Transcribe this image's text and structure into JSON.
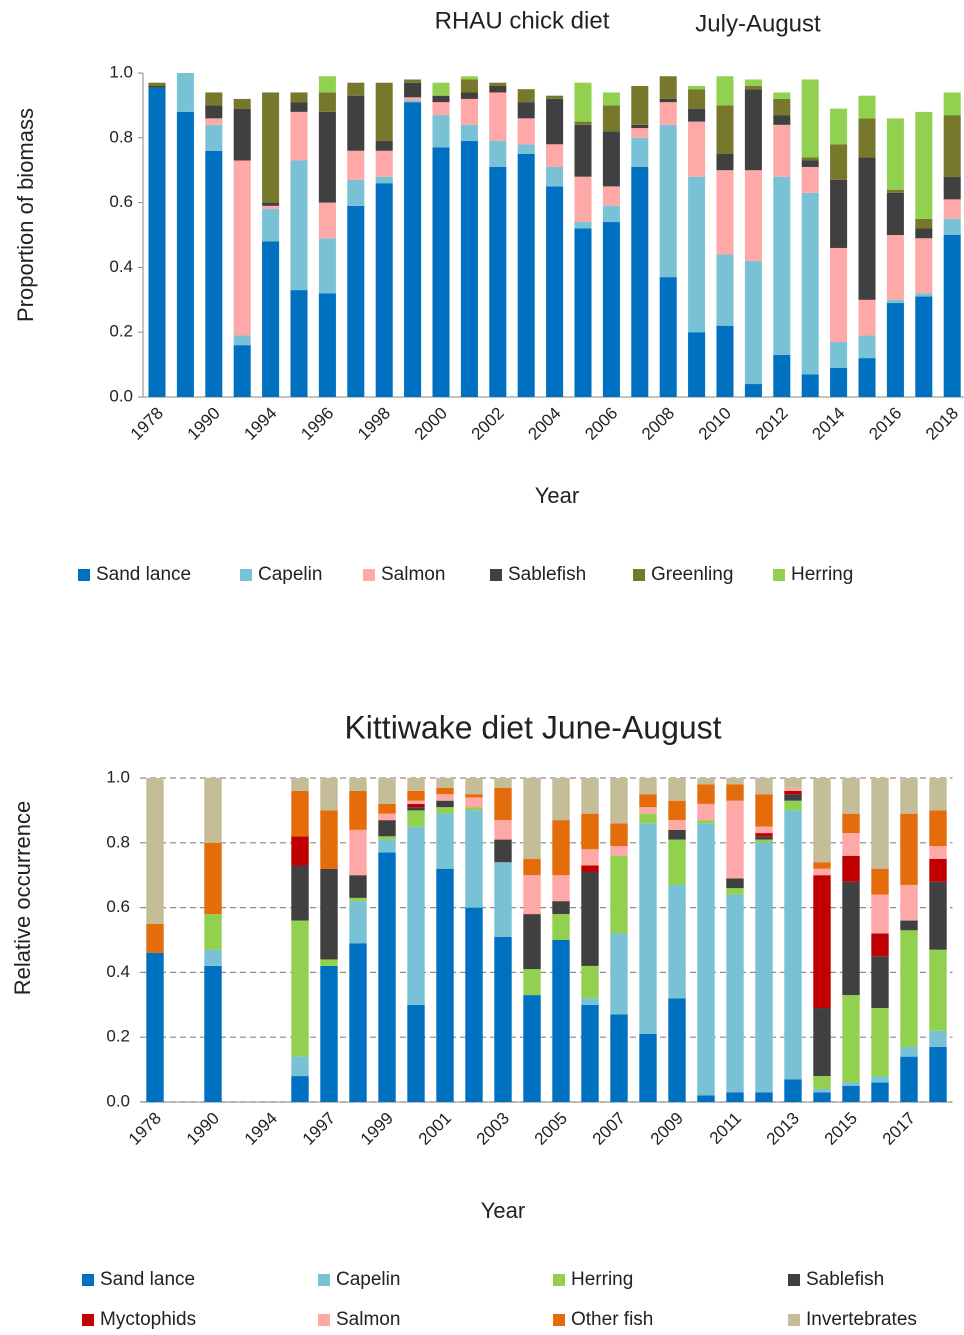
{
  "chart_data": [
    {
      "type": "bar",
      "stacked": true,
      "title": "RHAU chick diet",
      "subtitle": "July-August",
      "xlabel": "Year",
      "ylabel": "Proportion of biomass",
      "grid": false,
      "categories": [
        "1978",
        null,
        "1990",
        null,
        "1994",
        null,
        "1996",
        null,
        "1998",
        null,
        "2000",
        null,
        "2002",
        null,
        "2004",
        null,
        "2006",
        null,
        "2008",
        null,
        "2010",
        null,
        "2012",
        null,
        "2014",
        null,
        "2016",
        null,
        "2018"
      ],
      "ylim": [
        0,
        1
      ],
      "yticks": [
        {
          "value": 0,
          "label": "0.0"
        },
        {
          "value": 0.2,
          "label": "0.2"
        },
        {
          "value": 0.4,
          "label": "0.4"
        },
        {
          "value": 0.6,
          "label": "0.6"
        },
        {
          "value": 0.8,
          "label": "0.8"
        },
        {
          "value": 1,
          "label": "1.0"
        }
      ],
      "series": [
        {
          "name": "Sand lance",
          "color": "#0070c0",
          "values": [
            0.955,
            0.88,
            0.76,
            0.16,
            0.48,
            0.33,
            0.32,
            0.59,
            0.66,
            0.91,
            0.77,
            0.79,
            0.71,
            0.75,
            0.65,
            0.52,
            0.54,
            0.71,
            0.37,
            0.2,
            0.22,
            0.04,
            0.13,
            0.07,
            0.09,
            0.12,
            0.29,
            0.31,
            0.5
          ]
        },
        {
          "name": "Capelin",
          "color": "#79c2d6",
          "values": [
            0,
            0.12,
            0.08,
            0.03,
            0.1,
            0.4,
            0.17,
            0.08,
            0.02,
            0.005,
            0.1,
            0.05,
            0.08,
            0.03,
            0.06,
            0.02,
            0.05,
            0.09,
            0.47,
            0.48,
            0.22,
            0.38,
            0.55,
            0.56,
            0.08,
            0.07,
            0.01,
            0.01,
            0.05
          ]
        },
        {
          "name": "Salmon",
          "color": "#ffa8a8",
          "values": [
            0,
            0,
            0.02,
            0.54,
            0.01,
            0.15,
            0.11,
            0.09,
            0.08,
            0.01,
            0.04,
            0.08,
            0.15,
            0.08,
            0.07,
            0.14,
            0.06,
            0.03,
            0.07,
            0.17,
            0.26,
            0.28,
            0.16,
            0.08,
            0.29,
            0.11,
            0.2,
            0.17,
            0.06
          ]
        },
        {
          "name": "Sablefish",
          "color": "#404040",
          "values": [
            0.005,
            0,
            0.04,
            0.16,
            0.01,
            0.03,
            0.28,
            0.17,
            0.03,
            0.045,
            0.02,
            0.02,
            0.02,
            0.05,
            0.14,
            0.16,
            0.17,
            0.01,
            0.01,
            0.04,
            0.05,
            0.25,
            0.03,
            0.02,
            0.21,
            0.44,
            0.13,
            0.03,
            0.07
          ]
        },
        {
          "name": "Greenling",
          "color": "#77782c",
          "values": [
            0.01,
            0,
            0.04,
            0.03,
            0.34,
            0.03,
            0.06,
            0.04,
            0.18,
            0.01,
            0,
            0.04,
            0.01,
            0.04,
            0.01,
            0.01,
            0.08,
            0.12,
            0.07,
            0.06,
            0.15,
            0.01,
            0.05,
            0.01,
            0.11,
            0.12,
            0.01,
            0.03,
            0.19
          ]
        },
        {
          "name": "Herring",
          "color": "#92d050",
          "values": [
            0,
            0,
            0,
            0,
            0,
            0,
            0.05,
            0,
            0,
            0,
            0.04,
            0.01,
            0,
            0,
            0,
            0.12,
            0.04,
            0,
            0,
            0.01,
            0.09,
            0.02,
            0.02,
            0.24,
            0.11,
            0.07,
            0.22,
            0.33,
            0.07
          ]
        }
      ]
    },
    {
      "type": "bar",
      "stacked": true,
      "title": "Kittiwake diet June-August",
      "xlabel": "Year",
      "ylabel": "Relative occurrence",
      "grid": true,
      "categories": [
        "1978",
        null,
        "1990",
        null,
        "1994",
        null,
        "1997",
        null,
        "1999",
        null,
        "2001",
        null,
        "2003",
        null,
        "2005",
        null,
        "2007",
        null,
        "2009",
        null,
        "2011",
        null,
        "2013",
        null,
        "2015",
        null,
        "2017",
        null
      ],
      "ylim": [
        0,
        1
      ],
      "yticks": [
        {
          "value": 0,
          "label": "0.0"
        },
        {
          "value": 0.2,
          "label": "0.2"
        },
        {
          "value": 0.4,
          "label": "0.4"
        },
        {
          "value": 0.6,
          "label": "0.6"
        },
        {
          "value": 0.8,
          "label": "0.8"
        },
        {
          "value": 1,
          "label": "1.0"
        }
      ],
      "series": [
        {
          "name": "Sand lance",
          "color": "#0070c0",
          "values": [
            0.46,
            null,
            0.42,
            null,
            null,
            0.08,
            0.42,
            0.49,
            0.77,
            0.3,
            0.72,
            0.6,
            0.51,
            0.33,
            0.5,
            0.3,
            0.27,
            0.21,
            0.32,
            0.02,
            0.03,
            0.03,
            0.07,
            0.03,
            0.05,
            0.06,
            0.14,
            0.17
          ]
        },
        {
          "name": "Capelin",
          "color": "#79c2d6",
          "values": [
            0,
            null,
            0.05,
            null,
            null,
            0.06,
            0,
            0.13,
            0.04,
            0.55,
            0.17,
            0.3,
            0.23,
            0,
            0,
            0.02,
            0.25,
            0.65,
            0.35,
            0.84,
            0.61,
            0.77,
            0.83,
            0.01,
            0.01,
            0.02,
            0.03,
            0.05
          ]
        },
        {
          "name": "Herring",
          "color": "#92d050",
          "values": [
            0,
            null,
            0.11,
            null,
            null,
            0.42,
            0.02,
            0.01,
            0.01,
            0.05,
            0.02,
            0.01,
            0,
            0.08,
            0.08,
            0.1,
            0.24,
            0.03,
            0.14,
            0.01,
            0.02,
            0.01,
            0.03,
            0.04,
            0.27,
            0.21,
            0.36,
            0.25
          ]
        },
        {
          "name": "Sablefish",
          "color": "#404040",
          "values": [
            0,
            null,
            0,
            null,
            null,
            0.17,
            0.28,
            0.07,
            0.05,
            0.01,
            0.02,
            0,
            0.07,
            0.17,
            0.04,
            0.29,
            0,
            0,
            0.03,
            0,
            0.03,
            0.01,
            0.02,
            0.21,
            0.35,
            0.16,
            0.03,
            0.21
          ]
        },
        {
          "name": "Myctophids",
          "color": "#c00000",
          "values": [
            0,
            null,
            0,
            null,
            null,
            0.09,
            0,
            0,
            0,
            0.01,
            0,
            0,
            0,
            0,
            0,
            0.02,
            0,
            0,
            0,
            0,
            0,
            0.01,
            0.01,
            0.41,
            0.08,
            0.07,
            0,
            0.07
          ]
        },
        {
          "name": "Salmon",
          "color": "#ffa8a8",
          "values": [
            0,
            null,
            0,
            null,
            null,
            0,
            0,
            0.14,
            0.02,
            0.01,
            0.02,
            0.03,
            0.06,
            0.12,
            0.08,
            0.05,
            0.03,
            0.02,
            0.03,
            0.05,
            0.24,
            0.02,
            0.01,
            0.02,
            0.07,
            0.12,
            0.11,
            0.04
          ]
        },
        {
          "name": "Other fish",
          "color": "#e46c0a",
          "values": [
            0.09,
            null,
            0.22,
            null,
            null,
            0.14,
            0.18,
            0.12,
            0.03,
            0.03,
            0.02,
            0.01,
            0.1,
            0.05,
            0.17,
            0.11,
            0.07,
            0.04,
            0.06,
            0.06,
            0.05,
            0.1,
            0,
            0.02,
            0.06,
            0.08,
            0.22,
            0.11
          ]
        },
        {
          "name": "Invertebrates",
          "color": "#c4bd97",
          "values": [
            0.45,
            null,
            0.2,
            null,
            null,
            0.04,
            0.1,
            0.04,
            0.08,
            0.04,
            0.03,
            0.05,
            0.03,
            0.25,
            0.13,
            0.11,
            0.14,
            0.05,
            0.07,
            0.02,
            0.02,
            0.05,
            0.03,
            0.26,
            0.11,
            0.28,
            0.11,
            0.1
          ]
        }
      ]
    }
  ]
}
